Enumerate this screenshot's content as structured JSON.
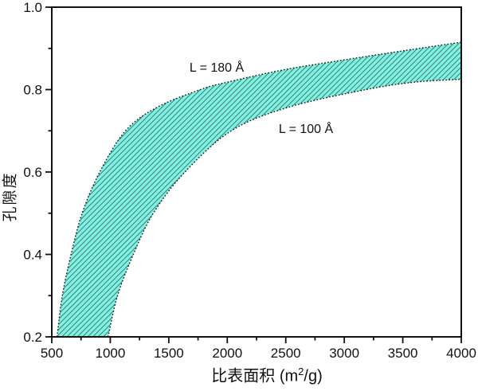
{
  "chart_data": {
    "type": "area",
    "title": "",
    "xlabel": "比表面积 (m²/g)",
    "xlabel_parts": {
      "prefix": "比表面积 (m",
      "sup": "2",
      "suffix": "/g)"
    },
    "ylabel": "孔隙度",
    "xlim": [
      500,
      4000
    ],
    "ylim": [
      0.2,
      1.0
    ],
    "x_ticks": [
      500,
      1000,
      1500,
      2000,
      2500,
      3000,
      3500,
      4000
    ],
    "y_ticks": [
      0.2,
      0.4,
      0.6,
      0.8,
      1.0
    ],
    "x_minor_ticks": [
      750,
      1250,
      1750,
      2250,
      2750,
      3250,
      3750
    ],
    "y_minor_ticks": [
      0.3,
      0.5,
      0.7,
      0.9
    ],
    "grid": false,
    "legend_position": "none",
    "band_fill_color": "#7DF4E3",
    "hatch_line_color": "#4f7f79",
    "hatch_angle_deg": 45,
    "curve_line_style": "dotted",
    "curve_line_color": "#111111",
    "axis_color": "#111111",
    "series": [
      {
        "name": "L = 180 Å",
        "pore_size_angstrom": 180,
        "points": [
          [
            545,
            0.2
          ],
          [
            590,
            0.3
          ],
          [
            665,
            0.4
          ],
          [
            760,
            0.5
          ],
          [
            910,
            0.6
          ],
          [
            1130,
            0.7
          ],
          [
            1400,
            0.757
          ],
          [
            1770,
            0.8
          ],
          [
            2000,
            0.818
          ],
          [
            2500,
            0.849
          ],
          [
            3000,
            0.872
          ],
          [
            3500,
            0.894
          ],
          [
            4000,
            0.915
          ]
        ]
      },
      {
        "name": "L = 100 Å",
        "pore_size_angstrom": 100,
        "points": [
          [
            981,
            0.2
          ],
          [
            1062,
            0.3
          ],
          [
            1197,
            0.4
          ],
          [
            1368,
            0.5
          ],
          [
            1638,
            0.6
          ],
          [
            2034,
            0.7
          ],
          [
            2520,
            0.757
          ],
          [
            3186,
            0.8
          ],
          [
            3600,
            0.818
          ],
          [
            4000,
            0.825
          ]
        ]
      }
    ]
  }
}
